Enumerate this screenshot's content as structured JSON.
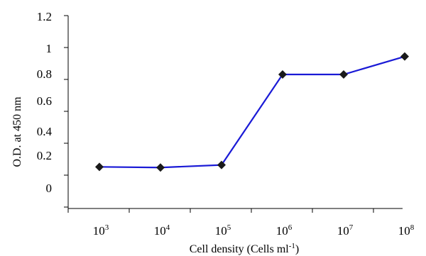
{
  "chart_data": {
    "type": "line",
    "xlabel": "Cell density (Cells ml",
    "xlabel_sup": "-1",
    "xlabel_end": ")",
    "ylabel": "O.D. at 450 nm",
    "x_categories": [
      {
        "base": "10",
        "exp": "3"
      },
      {
        "base": "10",
        "exp": "4"
      },
      {
        "base": "10",
        "exp": "5"
      },
      {
        "base": "10",
        "exp": "6"
      },
      {
        "base": "10",
        "exp": "7"
      },
      {
        "base": "10",
        "exp": "8"
      }
    ],
    "y_tick_labels": [
      "0",
      "0.2",
      "0.4",
      "0.6",
      "0.8",
      "1",
      "1.2"
    ],
    "series": [
      {
        "color": "#1a1ad6",
        "marker": "diamond",
        "marker_color": "#1a1a1a",
        "values": [
          0.07,
          0.065,
          0.085,
          0.79,
          0.79,
          0.93
        ]
      }
    ],
    "grid": false,
    "legend": "none"
  }
}
